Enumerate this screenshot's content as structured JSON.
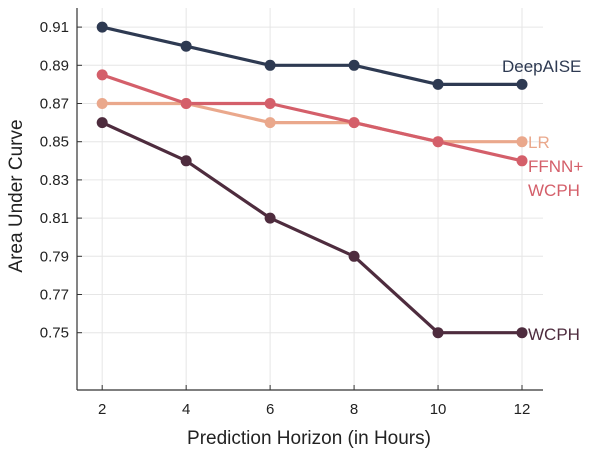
{
  "chart_data": {
    "type": "line",
    "title": "",
    "xlabel": "Prediction Horizon (in Hours)",
    "ylabel": "Area Under Curve",
    "x": [
      2,
      4,
      6,
      8,
      10,
      12
    ],
    "xlim": [
      1.4,
      12.5
    ],
    "ylim": [
      0.72,
      0.92
    ],
    "xticks": [
      "2",
      "4",
      "6",
      "8",
      "10",
      "12"
    ],
    "yticks": [
      "0.91",
      "0.89",
      "0.87",
      "0.85",
      "0.83",
      "0.81",
      "0.79",
      "0.77",
      "0.75"
    ],
    "grid": true,
    "legend": "direct labels at line ends",
    "series": [
      {
        "name": "DeepAISE",
        "label_lines": [
          "DeepAISE"
        ],
        "color": "#2e3a52",
        "values": [
          0.91,
          0.9,
          0.89,
          0.89,
          0.88,
          0.88
        ]
      },
      {
        "name": "LR",
        "label_lines": [
          "LR"
        ],
        "color": "#eaa88c",
        "values": [
          0.87,
          0.87,
          0.86,
          0.86,
          0.85,
          0.85
        ]
      },
      {
        "name": "FFNN+WCPH",
        "label_lines": [
          "FFNN+",
          "WCPH"
        ],
        "color": "#d45f6a",
        "values": [
          0.885,
          0.87,
          0.87,
          0.86,
          0.85,
          0.84
        ]
      },
      {
        "name": "WCPH",
        "label_lines": [
          "WCPH"
        ],
        "color": "#4e2c3e",
        "values": [
          0.86,
          0.84,
          0.81,
          0.79,
          0.75,
          0.75
        ]
      }
    ]
  }
}
